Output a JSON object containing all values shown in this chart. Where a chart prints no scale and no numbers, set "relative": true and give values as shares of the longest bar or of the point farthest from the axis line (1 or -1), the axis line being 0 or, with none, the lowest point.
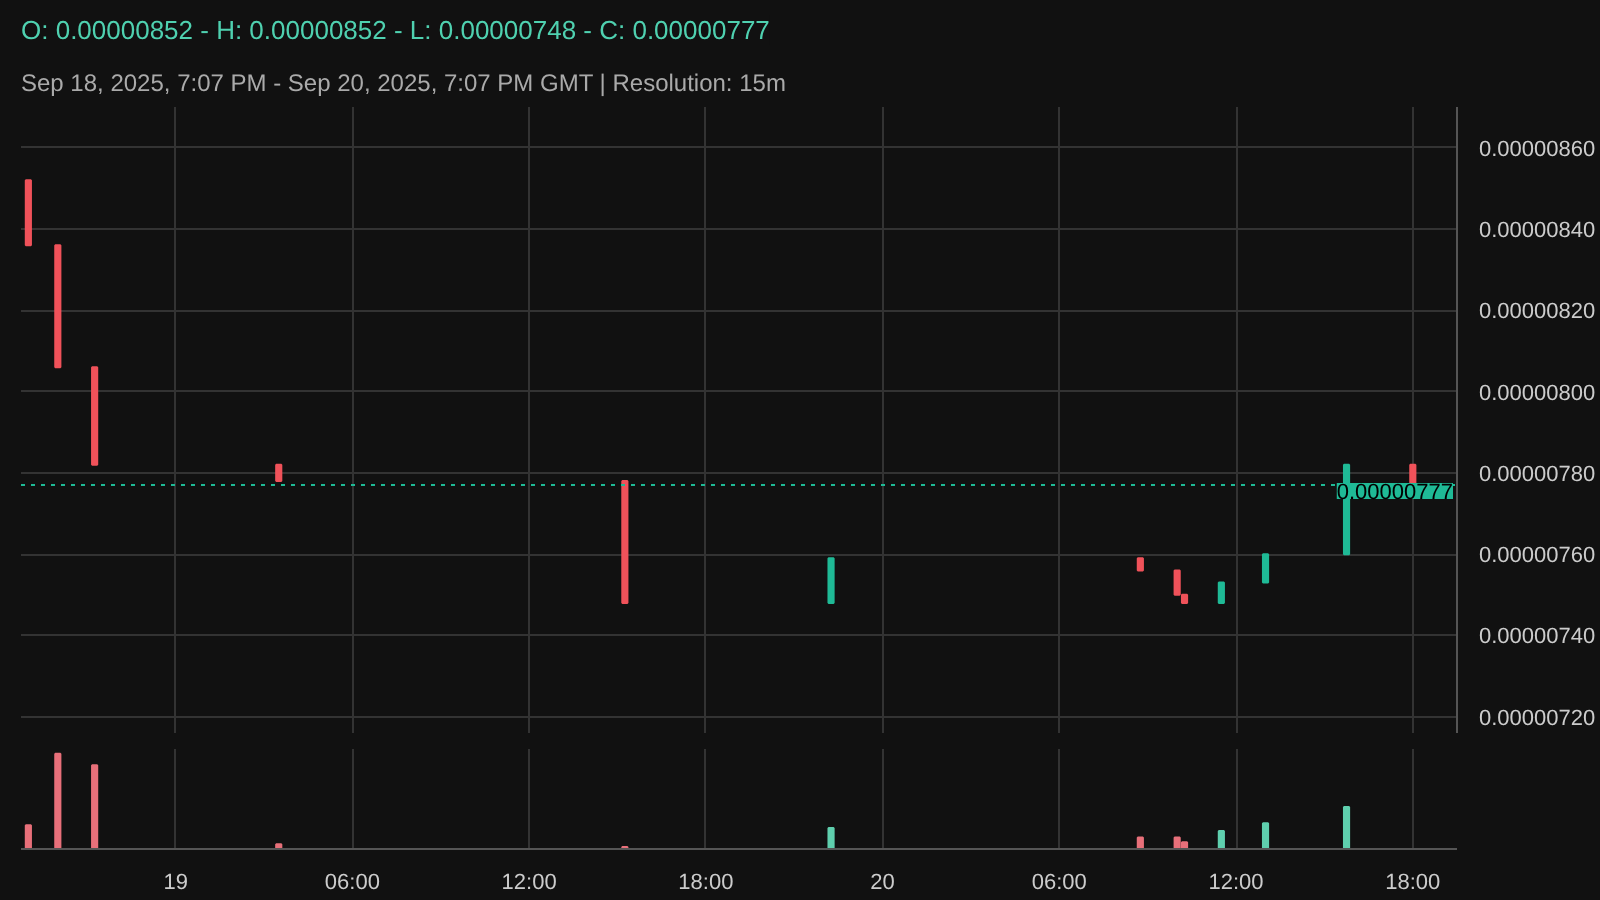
{
  "chart_data": [
    {
      "type": "candlestick",
      "title": "O: 0.00000852 - H: 0.00000852 - L: 0.00000748 - C: 0.00000777",
      "subtitle": "Sep 18, 2025, 7:07 PM - Sep 20, 2025, 7:07 PM GMT   |   Resolution: 15m",
      "x": [
        "2025-09-18T19:00",
        "2025-09-18T20:00",
        "2025-09-18T21:15",
        "2025-09-19T03:30",
        "2025-09-19T15:15",
        "2025-09-19T22:15",
        "2025-09-20T08:45",
        "2025-09-20T10:00",
        "2025-09-20T10:15",
        "2025-09-20T11:30",
        "2025-09-20T13:00",
        "2025-09-20T15:45",
        "2025-09-20T18:00"
      ],
      "ohlc": [
        [
          8.52e-06,
          8.52e-06,
          8.36e-06,
          8.36e-06
        ],
        [
          8.36e-06,
          8.36e-06,
          8.06e-06,
          8.06e-06
        ],
        [
          8.06e-06,
          8.06e-06,
          7.82e-06,
          7.82e-06
        ],
        [
          7.82e-06,
          7.82e-06,
          7.78e-06,
          7.78e-06
        ],
        [
          7.78e-06,
          7.78e-06,
          7.48e-06,
          7.48e-06
        ],
        [
          7.48e-06,
          7.59e-06,
          7.48e-06,
          7.59e-06
        ],
        [
          7.59e-06,
          7.59e-06,
          7.56e-06,
          7.56e-06
        ],
        [
          7.56e-06,
          7.56e-06,
          7.5e-06,
          7.5e-06
        ],
        [
          7.5e-06,
          7.5e-06,
          7.48e-06,
          7.48e-06
        ],
        [
          7.48e-06,
          7.53e-06,
          7.48e-06,
          7.53e-06
        ],
        [
          7.53e-06,
          7.6e-06,
          7.53e-06,
          7.6e-06
        ],
        [
          7.6e-06,
          7.82e-06,
          7.6e-06,
          7.82e-06
        ],
        [
          7.82e-06,
          7.82e-06,
          7.77e-06,
          7.77e-06
        ]
      ],
      "colors": [
        "#f0525a",
        "#f0525a",
        "#f0525a",
        "#f0525a",
        "#f0525a",
        "#1fba96",
        "#f0525a",
        "#f0525a",
        "#f0525a",
        "#1fba96",
        "#1fba96",
        "#1fba96",
        "#f0525a"
      ],
      "xlim": [
        "2025-09-18T18:45",
        "2025-09-20T19:30"
      ],
      "ylim": [
        7.16e-06,
        8.7e-06
      ],
      "yticks": [
        {
          "value": 7.2e-06,
          "label": "0.00000720"
        },
        {
          "value": 7.4e-06,
          "label": "0.00000740"
        },
        {
          "value": 7.6e-06,
          "label": "0.00000760"
        },
        {
          "value": 7.8e-06,
          "label": "0.00000780"
        },
        {
          "value": 8e-06,
          "label": "0.00000800"
        },
        {
          "value": 8.2e-06,
          "label": "0.00000820"
        },
        {
          "value": 8.4e-06,
          "label": "0.00000840"
        },
        {
          "value": 8.6e-06,
          "label": "0.00000860"
        }
      ],
      "xticks": [
        {
          "value": "2025-09-19T00:00",
          "label": null
        },
        {
          "value": "2025-09-19T06:00",
          "label": null
        },
        {
          "value": "2025-09-19T12:00",
          "label": null
        },
        {
          "value": "2025-09-19T18:00",
          "label": null
        },
        {
          "value": "2025-09-20T00:00",
          "label": null
        },
        {
          "value": "2025-09-20T06:00",
          "label": null
        },
        {
          "value": "2025-09-20T12:00",
          "label": null
        },
        {
          "value": "2025-09-20T18:00",
          "label": null
        }
      ],
      "ref_lines": [
        {
          "axis": "y",
          "value": 7.77e-06,
          "label": "0.00000777",
          "color": "#1fba96",
          "line_style": "dotted"
        }
      ],
      "grid": true,
      "tick_labels": "y"
    },
    {
      "type": "bar",
      "relative": true,
      "x": [
        "2025-09-18T19:00",
        "2025-09-18T20:00",
        "2025-09-18T21:15",
        "2025-09-19T03:30",
        "2025-09-19T15:15",
        "2025-09-19T22:15",
        "2025-09-20T08:45",
        "2025-09-20T10:00",
        "2025-09-20T10:15",
        "2025-09-20T11:30",
        "2025-09-20T13:00",
        "2025-09-20T15:45"
      ],
      "values": [
        0.25,
        1,
        0.88,
        0.05,
        0.02,
        0.22,
        0.12,
        0.12,
        0.07,
        0.19,
        0.27,
        0.44
      ],
      "colors": [
        "#e8707a",
        "#e8707a",
        "#e8707a",
        "#e8707a",
        "#e8707a",
        "#5fcfae",
        "#e8707a",
        "#e8707a",
        "#e8707a",
        "#5fcfae",
        "#5fcfae",
        "#5fcfae"
      ],
      "xlim": [
        "2025-09-18T18:45",
        "2025-09-20T19:30"
      ],
      "xticks": [
        {
          "value": "2025-09-19T00:00",
          "label": "19"
        },
        {
          "value": "2025-09-19T06:00",
          "label": "06:00"
        },
        {
          "value": "2025-09-19T12:00",
          "label": "12:00"
        },
        {
          "value": "2025-09-19T18:00",
          "label": "18:00"
        },
        {
          "value": "2025-09-20T00:00",
          "label": "20"
        },
        {
          "value": "2025-09-20T06:00",
          "label": "06:00"
        },
        {
          "value": "2025-09-20T12:00",
          "label": "12:00"
        },
        {
          "value": "2025-09-20T18:00",
          "label": "18:00"
        }
      ],
      "grid": "x",
      "tick_labels": "x"
    }
  ]
}
